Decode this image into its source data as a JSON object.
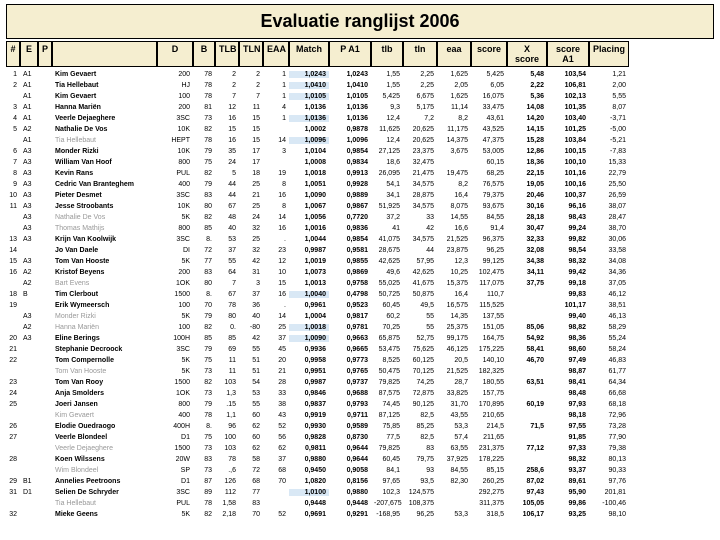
{
  "title": "Evaluatie ranglijst 2006",
  "headers": [
    "#",
    "E",
    "P",
    "",
    "D",
    "B",
    "TLB",
    "TLN",
    "EAA",
    "Match",
    "P A1",
    "tlb",
    "tln",
    "eaa",
    "score",
    "X score",
    "score A1",
    "Placing"
  ],
  "rows": [
    {
      "n": "1",
      "e": "A1",
      "p": "",
      "name": "Kim Gevaert",
      "b": true,
      "d": "200",
      "bb": "78",
      "tlb": "2",
      "tln": "2",
      "eaa": "1",
      "m": "1,0243",
      "hl": true,
      "pa": "1,0243",
      "t1": "1,55",
      "t2": "2,25",
      "ea": "1,625",
      "sc": "5,425",
      "xs": "5,48",
      "sa": "103,54",
      "pl": "1,21"
    },
    {
      "n": "2",
      "e": "A1",
      "p": "",
      "name": "Tia Hellebaut",
      "b": true,
      "d": "HJ",
      "bb": "78",
      "tlb": "2",
      "tln": "2",
      "eaa": "1",
      "m": "1,0410",
      "hl": true,
      "pa": "1,0410",
      "t1": "1,55",
      "t2": "2,25",
      "ea": "2,05",
      "sc": "6,05",
      "xs": "2,22",
      "sa": "106,81",
      "pl": "2,00"
    },
    {
      "n": "",
      "e": "A1",
      "p": "",
      "name": "Kim Gevaert",
      "b": true,
      "d": "100",
      "bb": "78",
      "tlb": "7",
      "tln": "7",
      "eaa": "1",
      "m": "1,0105",
      "hl": true,
      "pa": "1,0105",
      "t1": "5,425",
      "t2": "6,675",
      "ea": "1,625",
      "sc": "16,075",
      "xs": "5,36",
      "sa": "102,13",
      "pl": "5,55"
    },
    {
      "n": "3",
      "e": "A1",
      "p": "",
      "name": "Hanna Mariën",
      "b": true,
      "d": "200",
      "bb": "81",
      "tlb": "12",
      "tln": "11",
      "eaa": "4",
      "m": "1,0136",
      "hl": false,
      "pa": "1,0136",
      "t1": "9,3",
      "t2": "5,175",
      "ea": "11,14",
      "sc": "33,475",
      "xs": "14,08",
      "sa": "101,35",
      "pl": "8,07"
    },
    {
      "n": "4",
      "e": "A1",
      "p": "",
      "name": "Veerle Dejaeghere",
      "b": true,
      "d": "3SC",
      "bb": "73",
      "tlb": "16",
      "tln": "15",
      "eaa": "1",
      "m": "1,0136",
      "hl": true,
      "pa": "1,0136",
      "t1": "12,4",
      "t2": "7,2",
      "ea": "8,2",
      "sc": "43,61",
      "xs": "14,20",
      "sa": "103,40",
      "pl": "-3,71"
    },
    {
      "n": "5",
      "e": "A2",
      "p": "",
      "name": "Nathalie De Vos",
      "b": true,
      "d": "10K",
      "bb": "82",
      "tlb": "15",
      "tln": "15",
      "eaa": "",
      "m": "1,0002",
      "hl": false,
      "pa": "0,9878",
      "t1": "11,625",
      "t2": "20,625",
      "ea": "11,175",
      "sc": "43,525",
      "xs": "14,15",
      "sa": "101,25",
      "pl": "-5,00"
    },
    {
      "n": "",
      "e": "A1",
      "p": "",
      "name": "Tia Hellebaut",
      "b": false,
      "g": true,
      "d": "HEPT",
      "bb": "78",
      "tlb": "16",
      "tln": "15",
      "eaa": "14",
      "m": "1,0096",
      "hl": true,
      "pa": "1,0096",
      "t1": "12,4",
      "t2": "20,625",
      "ea": "14,375",
      "sc": "47,375",
      "xs": "15,28",
      "sa": "103,84",
      "pl": "-5,21"
    },
    {
      "n": "6",
      "e": "A3",
      "p": "",
      "name": "Monder Rizki",
      "b": true,
      "d": "10K",
      "bb": "79",
      "tlb": "35",
      "tln": "17",
      "eaa": "3",
      "m": "1,0104",
      "hl": false,
      "pa": "0,9854",
      "t1": "27,125",
      "t2": "23,375",
      "ea": "3,675",
      "sc": "53,005",
      "xs": "12,86",
      "sa": "100,15",
      "pl": "-7,83"
    },
    {
      "n": "7",
      "e": "A3",
      "p": "",
      "name": "William Van Hoof",
      "b": true,
      "d": "800",
      "bb": "75",
      "tlb": "24",
      "tln": "17",
      "eaa": "",
      "m": "1,0008",
      "hl": false,
      "pa": "0,9834",
      "t1": "18,6",
      "t2": "32,475",
      "ea": "",
      "sc": "60,15",
      "xs": "18,36",
      "sa": "100,10",
      "pl": "15,33"
    },
    {
      "n": "8",
      "e": "A3",
      "p": "",
      "name": "Kevin Rans",
      "b": true,
      "d": "PUL",
      "bb": "82",
      "tlb": "5",
      "tln": "18",
      "eaa": "19",
      "m": "1,0018",
      "hl": false,
      "pa": "0,9913",
      "t1": "26,095",
      "t2": "21,475",
      "ea": "19,475",
      "sc": "68,25",
      "xs": "22,15",
      "sa": "101,16",
      "pl": "22,79"
    },
    {
      "n": "9",
      "e": "A3",
      "p": "",
      "name": "Cedric Van Branteghem",
      "b": true,
      "d": "400",
      "bb": "79",
      "tlb": "44",
      "tln": "25",
      "eaa": "8",
      "m": "1,0051",
      "hl": false,
      "pa": "0,9928",
      "t1": "54,1",
      "t2": "34,575",
      "ea": "8,2",
      "sc": "76,575",
      "xs": "19,05",
      "sa": "100,16",
      "pl": "25,50"
    },
    {
      "n": "10",
      "e": "A3",
      "p": "",
      "name": "Pieter Desmet",
      "b": true,
      "d": "3SC",
      "bb": "83",
      "tlb": "44",
      "tln": "21",
      "eaa": "16",
      "m": "1,0090",
      "hl": false,
      "pa": "0,9889",
      "t1": "34,1",
      "t2": "28,875",
      "ea": "16,4",
      "sc": "79,375",
      "xs": "20,46",
      "sa": "100,37",
      "pl": "26,59"
    },
    {
      "n": "11",
      "e": "A3",
      "p": "",
      "name": "Jesse Stroobants",
      "b": true,
      "d": "10K",
      "bb": "80",
      "tlb": "67",
      "tln": "25",
      "eaa": "8",
      "m": "1,0067",
      "hl": false,
      "pa": "0,9867",
      "t1": "51,925",
      "t2": "34,575",
      "ea": "8,075",
      "sc": "93,675",
      "xs": "30,16",
      "sa": "96,16",
      "pl": "38,07"
    },
    {
      "n": "",
      "e": "A3",
      "p": "",
      "name": "Nathalie De Vos",
      "b": false,
      "g": true,
      "d": "5K",
      "bb": "82",
      "tlb": "48",
      "tln": "24",
      "eaa": "14",
      "m": "1,0056",
      "hl": false,
      "pa": "0,7720",
      "t1": "37,2",
      "t2": "33",
      "ea": "14,55",
      "sc": "84,55",
      "xs": "28,18",
      "sa": "98,43",
      "pl": "28,47"
    },
    {
      "n": "",
      "e": "A3",
      "p": "",
      "name": "Thomas Mathijs",
      "b": false,
      "g": true,
      "d": "800",
      "bb": "85",
      "tlb": "40",
      "tln": "32",
      "eaa": "16",
      "m": "1,0016",
      "hl": false,
      "pa": "0,9836",
      "t1": "41",
      "t2": "42",
      "ea": "16,6",
      "sc": "91,4",
      "xs": "30,47",
      "sa": "99,24",
      "pl": "38,70"
    },
    {
      "n": "13",
      "e": "A3",
      "p": "",
      "name": "Krijn Van Koolwijk",
      "b": true,
      "d": "3SC",
      "bb": "8.",
      "tlb": "53",
      "tln": "25",
      "eaa": ".",
      "m": "1,0044",
      "hl": false,
      "pa": "0,9854",
      "t1": "41,075",
      "t2": "34,575",
      "ea": "21,525",
      "sc": "96,375",
      "xs": "32,33",
      "sa": "99,82",
      "pl": "30,06"
    },
    {
      "n": "14",
      "e": "",
      "p": "",
      "name": "Jo Van Daele",
      "b": true,
      "d": "DI",
      "bb": "72",
      "tlb": "37",
      "tln": "32",
      "eaa": "23",
      "m": "0,9987",
      "hl": false,
      "pa": "0,9581",
      "t1": "28,675",
      "t2": "44",
      "ea": "23,875",
      "sc": "96,25",
      "xs": "32,08",
      "sa": "98,54",
      "pl": "33,58"
    },
    {
      "n": "15",
      "e": "A3",
      "p": "",
      "name": "Tom Van Hooste",
      "b": true,
      "d": "5K",
      "bb": "77",
      "tlb": "55",
      "tln": "42",
      "eaa": "12",
      "m": "1,0019",
      "hl": false,
      "pa": "0,9855",
      "t1": "42,625",
      "t2": "57,95",
      "ea": "12,3",
      "sc": "99,125",
      "xs": "34,38",
      "sa": "98,32",
      "pl": "34,08"
    },
    {
      "n": "16",
      "e": "A2",
      "p": "",
      "name": "Kristof Beyens",
      "b": true,
      "d": "200",
      "bb": "83",
      "tlb": "64",
      "tln": "31",
      "eaa": "10",
      "m": "1,0073",
      "hl": false,
      "pa": "0,9869",
      "t1": "49,6",
      "t2": "42,625",
      "ea": "10,25",
      "sc": "102,475",
      "xs": "34,11",
      "sa": "99,42",
      "pl": "34,36"
    },
    {
      "n": "",
      "e": "A2",
      "p": "",
      "name": "Bart Evens",
      "b": false,
      "g": true,
      "d": "1OK",
      "bb": "80",
      "tlb": "7",
      "tln": "3",
      "eaa": "15",
      "m": "1,0013",
      "hl": false,
      "pa": "0,9758",
      "t1": "55,025",
      "t2": "41,675",
      "ea": "15,375",
      "sc": "117,075",
      "xs": "37,75",
      "sa": "99,18",
      "pl": "37,05"
    },
    {
      "n": "18",
      "e": "B",
      "p": "",
      "name": "Tim Clerbout",
      "b": true,
      "d": "1500",
      "bb": "8.",
      "tlb": "67",
      "tln": "37",
      "eaa": "16",
      "m": "1,0040",
      "hl": true,
      "pa": "0,4798",
      "t1": "50,725",
      "t2": "50,875",
      "ea": "16,4",
      "sc": "110,7",
      "xs": "",
      "sa": "99,83",
      "pl": "46,12"
    },
    {
      "n": "19",
      "e": "",
      "p": "",
      "name": "Erik Wymeersch",
      "b": true,
      "d": "100",
      "bb": "70",
      "tlb": "78",
      "tln": "36",
      "eaa": ".",
      "m": "0,9961",
      "hl": false,
      "pa": "0,9523",
      "t1": "60,45",
      "t2": "49,5",
      "ea": "16,575",
      "sc": "115,525",
      "xs": "",
      "sa": "101,17",
      "pl": "38,51"
    },
    {
      "n": "",
      "e": "A3",
      "p": "",
      "name": "Monder Rizki",
      "b": false,
      "g": true,
      "d": "5K",
      "bb": "79",
      "tlb": "80",
      "tln": "40",
      "eaa": "14",
      "m": "1,0004",
      "hl": false,
      "pa": "0,9817",
      "t1": "60,2",
      "t2": "55",
      "ea": "14,35",
      "sc": "137,55",
      "xs": "",
      "sa": "99,40",
      "pl": "46,13"
    },
    {
      "n": "",
      "e": "A2",
      "p": "",
      "name": "Hanna Mariën",
      "b": false,
      "g": true,
      "d": "100",
      "bb": "82",
      "tlb": "0.",
      "tln": "-80",
      "eaa": "25",
      "m": "1,0018",
      "hl": true,
      "pa": "0,9781",
      "t1": "70,25",
      "t2": "55",
      "ea": "25,375",
      "sc": "151,05",
      "xs": "85,06",
      "sa": "98,82",
      "pl": "58,29"
    },
    {
      "n": "20",
      "e": "A3",
      "p": "",
      "name": "Eline Berings",
      "b": true,
      "d": "100H",
      "bb": "85",
      "tlb": "85",
      "tln": "42",
      "eaa": "37",
      "m": "1,0090",
      "hl": true,
      "pa": "0,9663",
      "t1": "65,875",
      "t2": "52,75",
      "ea": "99,175",
      "sc": "164,75",
      "xs": "54,92",
      "sa": "98,36",
      "pl": "55,24"
    },
    {
      "n": "21",
      "e": "",
      "p": "",
      "name": "Stephanie Decroock",
      "b": true,
      "d": "3SC",
      "bb": "79",
      "tlb": "69",
      "tln": "55",
      "eaa": "45",
      "m": "0,9936",
      "hl": false,
      "pa": "0,9665",
      "t1": "53,475",
      "t2": "75,625",
      "ea": "46,125",
      "sc": "175,225",
      "xs": "58,41",
      "sa": "98,60",
      "pl": "58,24"
    },
    {
      "n": "22",
      "e": "",
      "p": "",
      "name": "Tom Compernolle",
      "b": true,
      "d": "5K",
      "bb": "75",
      "tlb": "11",
      "tln": "51",
      "eaa": "20",
      "m": "0,9958",
      "hl": false,
      "pa": "0,9773",
      "t1": "8,525",
      "t2": "60,125",
      "ea": "20,5",
      "sc": "140,10",
      "xs": "46,70",
      "sa": "97,49",
      "pl": "46,83"
    },
    {
      "n": "",
      "e": "",
      "p": "",
      "name": "Tom Van Hooste",
      "b": false,
      "g": true,
      "d": "5K",
      "bb": "73",
      "tlb": "11",
      "tln": "51",
      "eaa": "21",
      "m": "0,9951",
      "hl": false,
      "pa": "0,9765",
      "t1": "50,475",
      "t2": "70,125",
      "ea": "21,525",
      "sc": "182,325",
      "xs": "",
      "sa": "98,87",
      "pl": "61,77"
    },
    {
      "n": "23",
      "e": "",
      "p": "",
      "name": "Tom Van Rooy",
      "b": true,
      "d": "1500",
      "bb": "82",
      "tlb": "103",
      "tln": "54",
      "eaa": "28",
      "m": "0,9987",
      "hl": false,
      "pa": "0,9737",
      "t1": "79,825",
      "t2": "74,25",
      "ea": "28,7",
      "sc": "180,55",
      "xs": "63,51",
      "sa": "98,41",
      "pl": "64,34"
    },
    {
      "n": "24",
      "e": "",
      "p": "",
      "name": "Anja Smolders",
      "b": true,
      "d": "1OK",
      "bb": "73",
      "tlb": "1,3",
      "tln": "53",
      "eaa": "33",
      "m": "0,9846",
      "hl": false,
      "pa": "0,9688",
      "t1": "87,575",
      "t2": "72,875",
      "ea": "33,825",
      "sc": "157,75",
      "xs": "",
      "sa": "98,48",
      "pl": "66,68"
    },
    {
      "n": "25",
      "e": "",
      "p": "",
      "name": "Joeri Jansen",
      "b": true,
      "d": "800",
      "bb": "79",
      "tlb": ".15",
      "tln": "55",
      "eaa": "38",
      "m": "0,9837",
      "hl": false,
      "pa": "0,9793",
      "t1": "74,45",
      "t2": "90,125",
      "ea": "31,70",
      "sc": "170,895",
      "xs": "60,19",
      "sa": "97,93",
      "pl": "68,18"
    },
    {
      "n": "",
      "e": "",
      "p": "",
      "name": "Kim Gevaert",
      "b": false,
      "g": true,
      "d": "400",
      "bb": "78",
      "tlb": "1,1",
      "tln": "60",
      "eaa": "43",
      "m": "0,9919",
      "hl": false,
      "pa": "0,9711",
      "t1": "87,125",
      "t2": "82,5",
      "ea": "43,55",
      "sc": "210,65",
      "xs": "",
      "sa": "98,18",
      "pl": "72,96"
    },
    {
      "n": "26",
      "e": "",
      "p": "",
      "name": "Elodie Ouedraogo",
      "b": true,
      "d": "400H",
      "bb": "8.",
      "tlb": "96",
      "tln": "62",
      "eaa": "52",
      "m": "0,9930",
      "hl": false,
      "pa": "0,9589",
      "t1": "75,85",
      "t2": "85,25",
      "ea": "53,3",
      "sc": "214,5",
      "xs": "71,5",
      "sa": "97,55",
      "pl": "73,28"
    },
    {
      "n": "27",
      "e": "",
      "p": "",
      "name": "Veerle Blondeel",
      "b": true,
      "d": "D1",
      "bb": "75",
      "tlb": "100",
      "tln": "60",
      "eaa": "56",
      "m": "0,9828",
      "hl": false,
      "pa": "0,8730",
      "t1": "77,5",
      "t2": "82,5",
      "ea": "57,4",
      "sc": "211,65",
      "xs": "",
      "sa": "91,85",
      "pl": "77,90"
    },
    {
      "n": "",
      "e": "",
      "p": "",
      "name": "Veerle Dejaeghere",
      "b": false,
      "g": true,
      "d": "1500",
      "bb": "73",
      "tlb": "103",
      "tln": "62",
      "eaa": "62",
      "m": "0,9811",
      "hl": false,
      "pa": "0,9644",
      "t1": "79,825",
      "t2": "83",
      "ea": "63,55",
      "sc": "231,375",
      "xs": "77,12",
      "sa": "97,33",
      "pl": "79,38"
    },
    {
      "n": "28",
      "e": "",
      "p": "",
      "name": "Koen Wilssens",
      "b": true,
      "d": "20W",
      "bb": "83",
      "tlb": "78",
      "tln": "58",
      "eaa": "37",
      "m": "0,9880",
      "hl": false,
      "pa": "0,9644",
      "t1": "60,45",
      "t2": "79,75",
      "ea": "37,925",
      "sc": "178,225",
      "xs": "",
      "sa": "98,32",
      "pl": "80,13"
    },
    {
      "n": "",
      "e": "",
      "p": "",
      "name": "Wim Blondeel",
      "b": false,
      "g": true,
      "d": "SP",
      "bb": "73",
      "tlb": ".,6",
      "tln": "72",
      "eaa": "68",
      "m": "0,9450",
      "hl": false,
      "pa": "0,9058",
      "t1": "84,1",
      "t2": "93",
      "ea": "84,55",
      "sc": "85,15",
      "xs": "258,6",
      "sa": "93,37",
      "pl": "90,33"
    },
    {
      "n": "29",
      "e": "B1",
      "p": "",
      "name": "Annelies Peetroons",
      "b": true,
      "d": "D1",
      "bb": "87",
      "tlb": "126",
      "tln": "68",
      "eaa": "70",
      "m": "1,0820",
      "hl": false,
      "pa": "0,8156",
      "t1": "97,65",
      "t2": "93,5",
      "ea": "82,30",
      "sc": "260,25",
      "xs": "87,02",
      "sa": "89,61",
      "pl": "97,76"
    },
    {
      "n": "31",
      "e": "D1",
      "p": "",
      "name": "Selien De Schryder",
      "b": true,
      "d": "3SC",
      "bb": "89",
      "tlb": "112",
      "tln": "77",
      "eaa": "",
      "m": "1,0100",
      "hl": true,
      "pa": "0,9880",
      "t1": "102,3",
      "t2": "124,575",
      "ea": "",
      "sc": "292,275",
      "xs": "97,43",
      "sa": "95,90",
      "pl": "201,81"
    },
    {
      "n": "",
      "e": "",
      "p": "",
      "name": "Tia Hellebaut",
      "b": false,
      "g": true,
      "d": "PUL",
      "bb": "78",
      "tlb": "1,58",
      "tln": "83",
      "eaa": "",
      "m": "0,9448",
      "hl": false,
      "pa": "0,9448",
      "t1": "-207,675",
      "t2": "108,375",
      "ea": "",
      "sc": "311,375",
      "xs": "105,05",
      "sa": "99,86",
      "pl": "-100,46"
    },
    {
      "n": "32",
      "e": "",
      "p": "",
      "name": "Mieke Geens",
      "b": true,
      "d": "5K",
      "bb": "82",
      "tlb": "2,18",
      "tln": "70",
      "eaa": "52",
      "m": "0,9691",
      "hl": false,
      "pa": "0,9291",
      "t1": "-168,95",
      "t2": "96,25",
      "ea": "53,3",
      "sc": "318,5",
      "xs": "106,17",
      "sa": "93,25",
      "pl": "98,10"
    }
  ]
}
